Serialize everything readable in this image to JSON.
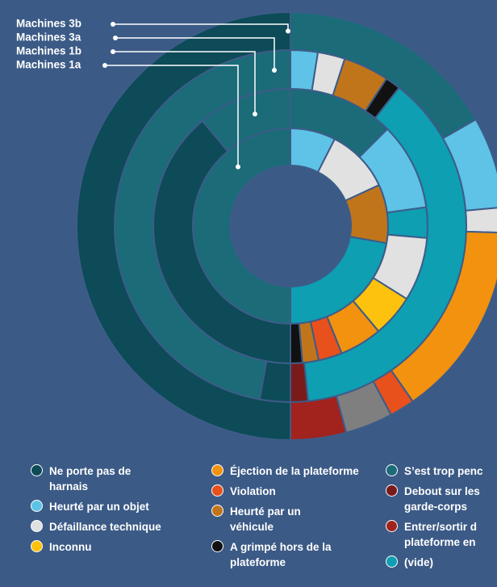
{
  "chart_data": {
    "type": "multi-donut",
    "rings": [
      {
        "name": "Machines 1a",
        "segments": [
          {
            "value": 7.5,
            "color": "#5ec3e6"
          },
          {
            "value": 10.6,
            "color": "#e1e1e1"
          },
          {
            "value": 9.7,
            "color": "#c1751b"
          },
          {
            "value": 22.2,
            "color": "#0e9fb3"
          },
          {
            "value": 50,
            "color": "#1b6b79"
          }
        ]
      },
      {
        "name": "Machines 1b",
        "segments": [
          {
            "value": 12.5,
            "color": "#1b6b79"
          },
          {
            "value": 10.3,
            "color": "#5ec3e6"
          },
          {
            "value": 3.6,
            "color": "#0e9fb3"
          },
          {
            "value": 7.5,
            "color": "#e1e1e1"
          },
          {
            "value": 5,
            "color": "#fcc20d"
          },
          {
            "value": 5,
            "color": "#f3920e"
          },
          {
            "value": 2.8,
            "color": "#e8501c"
          },
          {
            "value": 1.9,
            "color": "#c1751b"
          },
          {
            "value": 1.4,
            "color": "#111111"
          },
          {
            "value": 38.9,
            "color": "#0c4b57"
          },
          {
            "value": 11.1,
            "color": "#1b6b79"
          }
        ]
      },
      {
        "name": "Machines 3a",
        "segments": [
          {
            "value": 2.5,
            "color": "#5ec3e6"
          },
          {
            "value": 2.5,
            "color": "#e1e1e1"
          },
          {
            "value": 4.2,
            "color": "#c1751b"
          },
          {
            "value": 1.4,
            "color": "#111111"
          },
          {
            "value": 37.8,
            "color": "#0e9fb3"
          },
          {
            "value": 1.6,
            "color": "#7a1b1b"
          },
          {
            "value": 2.8,
            "color": "#0c4b57"
          },
          {
            "value": 47.2,
            "color": "#1b6b79"
          }
        ]
      },
      {
        "name": "Machines 3b",
        "segments": [
          {
            "value": 16.7,
            "color": "#1b6b79"
          },
          {
            "value": 6.9,
            "color": "#5ec3e6"
          },
          {
            "value": 1.9,
            "color": "#e1e1e1"
          },
          {
            "value": 14.8,
            "color": "#f3920e"
          },
          {
            "value": 1.9,
            "color": "#e8501c"
          },
          {
            "value": 3.6,
            "color": "#7f7f7f"
          },
          {
            "value": 4.2,
            "color": "#a2221d"
          },
          {
            "value": 50,
            "color": "#0c4b57"
          }
        ]
      }
    ],
    "legend": [
      {
        "name": "Ne porte pas de\nharnais",
        "color": "#0c4b57"
      },
      {
        "name": "Heurté par un objet",
        "color": "#5ec3e6"
      },
      {
        "name": "Défaillance technique",
        "color": "#e1e1e1"
      },
      {
        "name": "Inconnu",
        "color": "#fcc20d"
      },
      {
        "name": "Éjection de la plateforme",
        "color": "#f3920e"
      },
      {
        "name": "Violation",
        "color": "#e8501c"
      },
      {
        "name": "Heurté par un\nvéhicule",
        "color": "#c1751b"
      },
      {
        "name": "A grimpé hors de la\nplateforme",
        "color": "#111111"
      },
      {
        "name": "S’est trop penc",
        "color": "#1b6b79"
      },
      {
        "name": "Debout sur les\ngarde-corps",
        "color": "#7a1b1b"
      },
      {
        "name": "Entrer/sortir d\nplateforme en",
        "color": "#a2221d"
      },
      {
        "name": "(vide)",
        "color": "#0e9fb3"
      }
    ]
  }
}
